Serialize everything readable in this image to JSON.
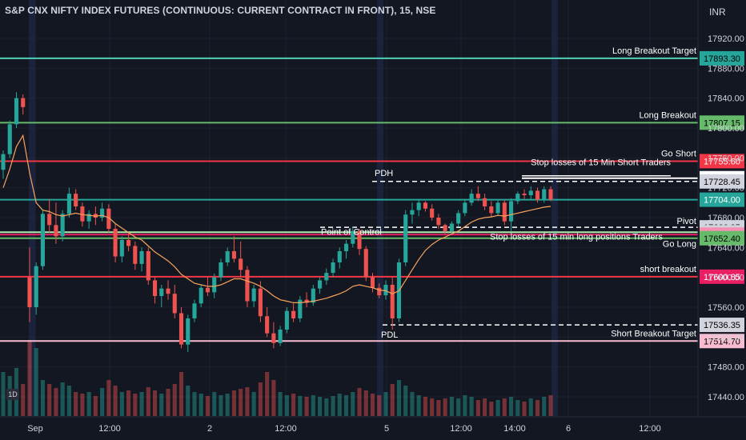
{
  "title": "S&P CNX NIFTY INDEX FUTURES (CONTINUOUS: CURRENT CONTRACT IN FRONT), 15, NSE",
  "currency": "INR",
  "interval_badge": "1D",
  "colors": {
    "background": "#131722",
    "bull": "#26a69a",
    "bear": "#ef5350",
    "ma": "#f7a35c",
    "text": "#d1d4dc",
    "grid": "#1e222d"
  },
  "chart_data": {
    "type": "candlestick",
    "y_ticks": [
      "17920.00",
      "17880.00",
      "17840.00",
      "17800.00",
      "17760.00",
      "17720.00",
      "17680.00",
      "17640.00",
      "17600.00",
      "17560.00",
      "17520.00",
      "17480.00",
      "17440.00"
    ],
    "x_ticks": [
      "Sep",
      "12:00",
      "2",
      "12:00",
      "5",
      "12:00",
      "14:00",
      "6",
      "12:00"
    ],
    "levels": [
      {
        "label": "Long Breakout Target",
        "price": "17893.30",
        "value": 17893.3,
        "color": "#4fd1b5",
        "badge_bg": "#26a69a",
        "badge_fg": "#000000",
        "dashed": false
      },
      {
        "label": "Long Breakout",
        "price": "17807.15",
        "value": 17807.15,
        "color": "#66bb6a",
        "badge_bg": "#66bb6a",
        "badge_fg": "#000000",
        "dashed": false
      },
      {
        "label": "Go Short",
        "price": "17755.60",
        "value": 17755.6,
        "color": "#f23645",
        "badge_bg": "#f23645",
        "badge_fg": "#ffffff",
        "dashed": false
      },
      {
        "label": "Stop losses of 15 Min Short Traders",
        "price": "17732.80",
        "value": 17732.8,
        "color": "#ffffff",
        "badge_bg": "#ffffff",
        "badge_fg": "#000000",
        "dashed": false
      },
      {
        "label": "PDH",
        "price": "17728.45",
        "value": 17728.45,
        "color": "#ffffff",
        "badge_bg": "#d1d4dc",
        "badge_fg": "#000000",
        "dashed": true
      },
      {
        "label": "",
        "price": "17704.00",
        "value": 17704.0,
        "color": "#26a69a",
        "badge_bg": "#26a69a",
        "badge_fg": "#ffffff",
        "dashed": false
      },
      {
        "label": "Pivot",
        "price": "17666.95",
        "value": 17666.95,
        "color": "#ffffff",
        "badge_bg": "#d1d4dc",
        "badge_fg": "#000000",
        "dashed": true
      },
      {
        "label": "Go Long",
        "price": "17660.40",
        "value": 17660.4,
        "color": "#b2ebb2",
        "badge_bg": "#d1d4dc",
        "badge_fg": "#000000",
        "dashed": false
      },
      {
        "label": "",
        "price": "17657.20",
        "value": 17657.2,
        "color": "#e91e63",
        "badge_bg": "#f48fb1",
        "badge_fg": "#000000",
        "dashed": false
      },
      {
        "label": "",
        "price": "17652.40",
        "value": 17652.4,
        "color": "#66bb6a",
        "badge_bg": "#66bb6a",
        "badge_fg": "#000000",
        "dashed": false
      },
      {
        "label": "short breakout",
        "price": "17600.85",
        "value": 17600.85,
        "color": "#f23645",
        "badge_bg": "#e91e63",
        "badge_fg": "#ffffff",
        "dashed": false
      },
      {
        "label": "PDL",
        "price": "17536.35",
        "value": 17536.35,
        "color": "#ffffff",
        "badge_bg": "#d1d4dc",
        "badge_fg": "#000000",
        "dashed": true
      },
      {
        "label": "Short  Breakout Target",
        "price": "17514.70",
        "value": 17514.7,
        "color": "#f8bbd0",
        "badge_bg": "#f8bbd0",
        "badge_fg": "#000000",
        "dashed": false
      }
    ],
    "annotations": [
      "Point of Control",
      "Stop losses of 15 min long positions Traders"
    ],
    "ohlc": [
      [
        17744,
        17770,
        17732,
        17765
      ],
      [
        17765,
        17810,
        17760,
        17805
      ],
      [
        17805,
        17848,
        17800,
        17840
      ],
      [
        17840,
        17845,
        17818,
        17828
      ],
      [
        17600,
        17640,
        17540,
        17560
      ],
      [
        17560,
        17620,
        17550,
        17615
      ],
      [
        17615,
        17690,
        17610,
        17685
      ],
      [
        17685,
        17705,
        17660,
        17670
      ],
      [
        17670,
        17700,
        17645,
        17655
      ],
      [
        17655,
        17690,
        17648,
        17685
      ],
      [
        17685,
        17720,
        17680,
        17712
      ],
      [
        17712,
        17718,
        17690,
        17695
      ],
      [
        17695,
        17700,
        17668,
        17675
      ],
      [
        17675,
        17690,
        17665,
        17685
      ],
      [
        17685,
        17695,
        17670,
        17680
      ],
      [
        17680,
        17700,
        17675,
        17692
      ],
      [
        17692,
        17698,
        17660,
        17665
      ],
      [
        17665,
        17672,
        17620,
        17628
      ],
      [
        17628,
        17655,
        17620,
        17650
      ],
      [
        17650,
        17660,
        17635,
        17642
      ],
      [
        17642,
        17648,
        17610,
        17618
      ],
      [
        17618,
        17640,
        17608,
        17635
      ],
      [
        17635,
        17640,
        17590,
        17596
      ],
      [
        17596,
        17600,
        17565,
        17575
      ],
      [
        17575,
        17590,
        17560,
        17585
      ],
      [
        17585,
        17596,
        17570,
        17578
      ],
      [
        17578,
        17590,
        17545,
        17552
      ],
      [
        17552,
        17560,
        17505,
        17510
      ],
      [
        17510,
        17550,
        17500,
        17545
      ],
      [
        17545,
        17570,
        17540,
        17565
      ],
      [
        17565,
        17590,
        17560,
        17586
      ],
      [
        17586,
        17600,
        17575,
        17580
      ],
      [
        17580,
        17605,
        17572,
        17600
      ],
      [
        17600,
        17625,
        17595,
        17620
      ],
      [
        17620,
        17640,
        17615,
        17635
      ],
      [
        17635,
        17655,
        17620,
        17625
      ],
      [
        17625,
        17648,
        17600,
        17610
      ],
      [
        17610,
        17615,
        17560,
        17568
      ],
      [
        17568,
        17590,
        17560,
        17585
      ],
      [
        17585,
        17595,
        17540,
        17548
      ],
      [
        17548,
        17560,
        17520,
        17525
      ],
      [
        17525,
        17540,
        17505,
        17512
      ],
      [
        17512,
        17535,
        17508,
        17530
      ],
      [
        17530,
        17560,
        17525,
        17555
      ],
      [
        17555,
        17565,
        17540,
        17545
      ],
      [
        17545,
        17575,
        17540,
        17570
      ],
      [
        17570,
        17580,
        17560,
        17566
      ],
      [
        17566,
        17590,
        17562,
        17585
      ],
      [
        17585,
        17600,
        17578,
        17596
      ],
      [
        17596,
        17612,
        17590,
        17606
      ],
      [
        17606,
        17625,
        17600,
        17620
      ],
      [
        17620,
        17640,
        17612,
        17635
      ],
      [
        17635,
        17650,
        17625,
        17645
      ],
      [
        17645,
        17668,
        17640,
        17662
      ],
      [
        17662,
        17665,
        17630,
        17638
      ],
      [
        17638,
        17642,
        17595,
        17600
      ],
      [
        17600,
        17606,
        17580,
        17586
      ],
      [
        17586,
        17592,
        17572,
        17576
      ],
      [
        17576,
        17596,
        17570,
        17590
      ],
      [
        17590,
        17600,
        17530,
        17545
      ],
      [
        17545,
        17625,
        17540,
        17620
      ],
      [
        17620,
        17690,
        17615,
        17684
      ],
      [
        17684,
        17700,
        17672,
        17690
      ],
      [
        17690,
        17705,
        17682,
        17700
      ],
      [
        17700,
        17702,
        17688,
        17692
      ],
      [
        17692,
        17698,
        17676,
        17680
      ],
      [
        17680,
        17685,
        17665,
        17670
      ],
      [
        17670,
        17672,
        17658,
        17662
      ],
      [
        17662,
        17675,
        17658,
        17672
      ],
      [
        17672,
        17690,
        17668,
        17686
      ],
      [
        17686,
        17705,
        17682,
        17700
      ],
      [
        17700,
        17718,
        17696,
        17712
      ],
      [
        17712,
        17722,
        17702,
        17706
      ],
      [
        17706,
        17712,
        17690,
        17695
      ],
      [
        17695,
        17702,
        17680,
        17686
      ],
      [
        17686,
        17705,
        17682,
        17700
      ],
      [
        17700,
        17704,
        17670,
        17675
      ],
      [
        17675,
        17706,
        17662,
        17702
      ],
      [
        17702,
        17715,
        17698,
        17712
      ],
      [
        17712,
        17718,
        17705,
        17710
      ],
      [
        17710,
        17722,
        17704,
        17716
      ],
      [
        17716,
        17720,
        17700,
        17704
      ],
      [
        17704,
        17722,
        17700,
        17718
      ],
      [
        17718,
        17722,
        17702,
        17704
      ]
    ],
    "ma": [
      17720,
      17745,
      17775,
      17790,
      17740,
      17700,
      17690,
      17688,
      17684,
      17682,
      17684,
      17686,
      17684,
      17683,
      17682,
      17683,
      17680,
      17672,
      17666,
      17660,
      17654,
      17650,
      17642,
      17634,
      17628,
      17622,
      17614,
      17604,
      17598,
      17592,
      17590,
      17588,
      17588,
      17590,
      17594,
      17598,
      17598,
      17595,
      17592,
      17588,
      17582,
      17575,
      17570,
      17568,
      17566,
      17566,
      17567,
      17568,
      17570,
      17572,
      17575,
      17578,
      17582,
      17588,
      17590,
      17588,
      17586,
      17583,
      17582,
      17578,
      17582,
      17596,
      17610,
      17624,
      17636,
      17644,
      17650,
      17654,
      17658,
      17662,
      17668,
      17674,
      17678,
      17680,
      17681,
      17683,
      17682,
      17684,
      17686,
      17688,
      17690,
      17692,
      17694,
      17695
    ],
    "volumes": [
      55,
      50,
      60,
      40,
      95,
      85,
      45,
      40,
      35,
      42,
      38,
      30,
      28,
      30,
      25,
      35,
      45,
      38,
      30,
      32,
      28,
      30,
      36,
      32,
      28,
      34,
      40,
      55,
      38,
      30,
      28,
      25,
      30,
      26,
      28,
      32,
      34,
      36,
      30,
      42,
      55,
      45,
      30,
      26,
      28,
      25,
      24,
      26,
      24,
      22,
      25,
      28,
      26,
      30,
      35,
      32,
      28,
      26,
      30,
      40,
      45,
      38,
      30,
      26,
      24,
      22,
      20,
      22,
      24,
      22,
      26,
      24,
      20,
      22,
      18,
      20,
      22,
      24,
      20,
      18,
      22,
      20,
      24,
      26
    ]
  }
}
